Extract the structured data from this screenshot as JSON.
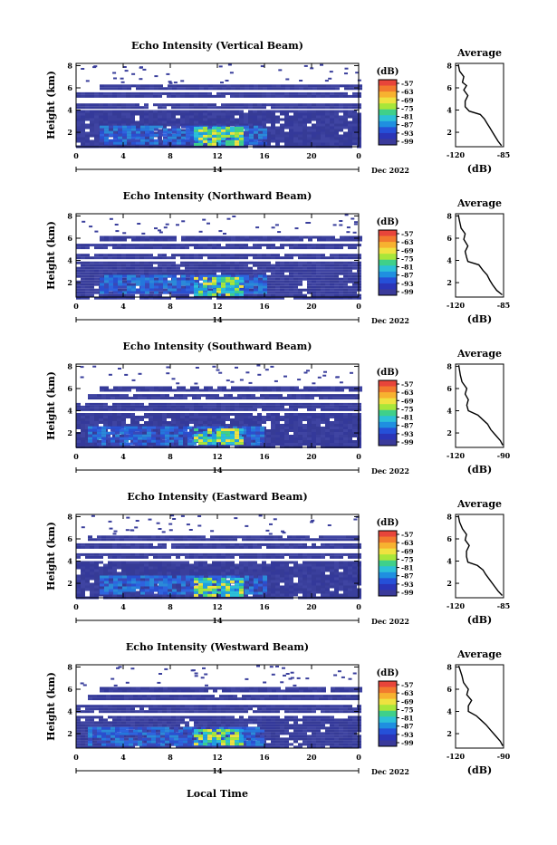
{
  "figure": {
    "xlabel_bottom": "Local Time",
    "date_label": "Dec 2022"
  },
  "chart_data": [
    {
      "type": "heatmap",
      "title": "Echo Intensity (Vertical Beam)",
      "ylabel": "Height (km)",
      "x_ticks": [
        "0",
        "4",
        "8",
        "12",
        "16",
        "20",
        "0"
      ],
      "x_range": [
        0,
        24
      ],
      "day_label": "14",
      "date_label": "Dec 2022",
      "y_ticks": [
        "2",
        "4",
        "6",
        "8"
      ],
      "y_range": [
        0.7,
        8.2
      ],
      "colorbar": {
        "unit": "(dB)",
        "ticks": [
          "-57",
          "-63",
          "-69",
          "-75",
          "-81",
          "-87",
          "-93",
          "-99"
        ],
        "colors": [
          "#e8453a",
          "#f27a2e",
          "#f7b230",
          "#efe240",
          "#a8e63a",
          "#3fd08a",
          "#2cc0d8",
          "#1f8fe0",
          "#2550d8",
          "#2a35b8",
          "#3a3a9a"
        ]
      },
      "avg_profile": {
        "title": "Average",
        "xlabel": "(dB)",
        "x_ticks": [
          "-120",
          "-85"
        ],
        "x_range": [
          -120,
          -85
        ],
        "y_ticks": [
          "2",
          "4",
          "6",
          "8"
        ],
        "y_range": [
          0.7,
          8.2
        ],
        "points": [
          [
            -86.5,
            0.8
          ],
          [
            -89,
            1.2
          ],
          [
            -91,
            1.6
          ],
          [
            -93,
            2.0
          ],
          [
            -95,
            2.4
          ],
          [
            -97,
            2.8
          ],
          [
            -99,
            3.2
          ],
          [
            -102,
            3.6
          ],
          [
            -110,
            3.9
          ],
          [
            -113,
            4.3
          ],
          [
            -113,
            4.8
          ],
          [
            -111,
            5.3
          ],
          [
            -114,
            5.8
          ],
          [
            -112,
            6.2
          ],
          [
            -115,
            6.5
          ],
          [
            -114,
            7.0
          ],
          [
            -117,
            7.5
          ],
          [
            -118,
            8.1
          ]
        ]
      },
      "heat_bands": [
        {
          "y0": 0.7,
          "y1": 4.0,
          "x0": 0,
          "x1": 24,
          "level": "low"
        },
        {
          "y0": 4.3,
          "y1": 4.6,
          "x0": 0,
          "x1": 24,
          "level": "low"
        },
        {
          "y0": 5.2,
          "y1": 5.6,
          "x0": 0,
          "x1": 24,
          "level": "low"
        },
        {
          "y0": 5.9,
          "y1": 6.3,
          "x0": 2,
          "x1": 24,
          "level": "low"
        },
        {
          "y0": 1.0,
          "y1": 2.6,
          "x0": 2,
          "x1": 16,
          "level": "mid"
        },
        {
          "y0": 1.0,
          "y1": 2.5,
          "x0": 10,
          "x1": 14,
          "level": "high"
        }
      ]
    },
    {
      "type": "heatmap",
      "title": "Echo Intensity (Northward Beam)",
      "ylabel": "Height (km)",
      "x_ticks": [
        "0",
        "4",
        "8",
        "12",
        "16",
        "20",
        "0"
      ],
      "x_range": [
        0,
        24
      ],
      "day_label": "14",
      "date_label": "Dec 2022",
      "y_ticks": [
        "2",
        "4",
        "6",
        "8"
      ],
      "y_range": [
        0.7,
        8.2
      ],
      "colorbar": {
        "unit": "(dB)",
        "ticks": [
          "-57",
          "-63",
          "-69",
          "-75",
          "-81",
          "-87",
          "-93",
          "-99"
        ],
        "colors": [
          "#e8453a",
          "#f27a2e",
          "#f7b230",
          "#efe240",
          "#a8e63a",
          "#3fd08a",
          "#2cc0d8",
          "#1f8fe0",
          "#2550d8",
          "#2a35b8",
          "#3a3a9a"
        ]
      },
      "avg_profile": {
        "title": "Average",
        "xlabel": "(dB)",
        "x_ticks": [
          "-120",
          "-85"
        ],
        "x_range": [
          -120,
          -85
        ],
        "y_ticks": [
          "2",
          "4",
          "6",
          "8"
        ],
        "y_range": [
          0.7,
          8.2
        ],
        "points": [
          [
            -86,
            0.9
          ],
          [
            -90,
            1.3
          ],
          [
            -93,
            1.8
          ],
          [
            -95,
            2.2
          ],
          [
            -97,
            2.7
          ],
          [
            -100,
            3.1
          ],
          [
            -103,
            3.6
          ],
          [
            -111,
            3.9
          ],
          [
            -112,
            4.3
          ],
          [
            -113,
            4.8
          ],
          [
            -111,
            5.3
          ],
          [
            -114,
            5.9
          ],
          [
            -113,
            6.4
          ],
          [
            -116,
            6.9
          ],
          [
            -117,
            7.5
          ],
          [
            -118,
            8.1
          ]
        ]
      },
      "heat_bands": [
        {
          "y0": 0.7,
          "y1": 3.9,
          "x0": 0,
          "x1": 24,
          "level": "low"
        },
        {
          "y0": 4.2,
          "y1": 4.6,
          "x0": 0,
          "x1": 24,
          "level": "low"
        },
        {
          "y0": 5.1,
          "y1": 5.5,
          "x0": 0,
          "x1": 24,
          "level": "low"
        },
        {
          "y0": 5.9,
          "y1": 6.2,
          "x0": 2,
          "x1": 24,
          "level": "low"
        },
        {
          "y0": 1.0,
          "y1": 2.7,
          "x0": 2,
          "x1": 16,
          "level": "mid"
        },
        {
          "y0": 1.0,
          "y1": 2.5,
          "x0": 10,
          "x1": 14,
          "level": "high"
        }
      ]
    },
    {
      "type": "heatmap",
      "title": "Echo Intensity (Southward Beam)",
      "ylabel": "Height (km)",
      "x_ticks": [
        "0",
        "4",
        "8",
        "12",
        "16",
        "20",
        "0"
      ],
      "x_range": [
        0,
        24
      ],
      "day_label": "14",
      "date_label": "Dec 2022",
      "y_ticks": [
        "2",
        "4",
        "6",
        "8"
      ],
      "y_range": [
        0.7,
        8.2
      ],
      "colorbar": {
        "unit": "(dB)",
        "ticks": [
          "-57",
          "-63",
          "-69",
          "-75",
          "-81",
          "-87",
          "-93",
          "-99"
        ],
        "colors": [
          "#e8453a",
          "#f27a2e",
          "#f7b230",
          "#efe240",
          "#a8e63a",
          "#3fd08a",
          "#2cc0d8",
          "#1f8fe0",
          "#2550d8",
          "#2a35b8",
          "#3a3a9a"
        ]
      },
      "avg_profile": {
        "title": "Average",
        "xlabel": "(dB)",
        "x_ticks": [
          "-120",
          "-90"
        ],
        "x_range": [
          -120,
          -90
        ],
        "y_ticks": [
          "2",
          "4",
          "6",
          "8"
        ],
        "y_range": [
          0.7,
          8.2
        ],
        "points": [
          [
            -90.5,
            0.9
          ],
          [
            -92,
            1.3
          ],
          [
            -95,
            1.8
          ],
          [
            -98,
            2.3
          ],
          [
            -100,
            2.8
          ],
          [
            -103,
            3.2
          ],
          [
            -106,
            3.6
          ],
          [
            -112,
            4.0
          ],
          [
            -113,
            4.5
          ],
          [
            -112,
            5.0
          ],
          [
            -114,
            5.5
          ],
          [
            -113,
            6.0
          ],
          [
            -116,
            6.6
          ],
          [
            -117,
            7.2
          ],
          [
            -118,
            8.1
          ]
        ]
      },
      "heat_bands": [
        {
          "y0": 0.7,
          "y1": 3.8,
          "x0": 0,
          "x1": 24,
          "level": "low"
        },
        {
          "y0": 4.2,
          "y1": 4.7,
          "x0": 0,
          "x1": 24,
          "level": "low"
        },
        {
          "y0": 5.2,
          "y1": 5.5,
          "x0": 1,
          "x1": 24,
          "level": "low"
        },
        {
          "y0": 5.9,
          "y1": 6.2,
          "x0": 2,
          "x1": 24,
          "level": "low"
        },
        {
          "y0": 1.0,
          "y1": 2.6,
          "x0": 1,
          "x1": 16,
          "level": "mid"
        },
        {
          "y0": 1.0,
          "y1": 2.4,
          "x0": 10,
          "x1": 14,
          "level": "high"
        }
      ]
    },
    {
      "type": "heatmap",
      "title": "Echo Intensity (Eastward Beam)",
      "ylabel": "Height (km)",
      "x_ticks": [
        "0",
        "4",
        "8",
        "12",
        "16",
        "20",
        "0"
      ],
      "x_range": [
        0,
        24
      ],
      "day_label": "14",
      "date_label": "Dec 2022",
      "y_ticks": [
        "2",
        "4",
        "6",
        "8"
      ],
      "y_range": [
        0.7,
        8.2
      ],
      "colorbar": {
        "unit": "(dB)",
        "ticks": [
          "-57",
          "-63",
          "-69",
          "-75",
          "-81",
          "-87",
          "-93",
          "-99"
        ],
        "colors": [
          "#e8453a",
          "#f27a2e",
          "#f7b230",
          "#efe240",
          "#a8e63a",
          "#3fd08a",
          "#2cc0d8",
          "#1f8fe0",
          "#2550d8",
          "#2a35b8",
          "#3a3a9a"
        ]
      },
      "avg_profile": {
        "title": "Average",
        "xlabel": "(dB)",
        "x_ticks": [
          "-120",
          "-85"
        ],
        "x_range": [
          -120,
          -85
        ],
        "y_ticks": [
          "2",
          "4",
          "6",
          "8"
        ],
        "y_range": [
          0.7,
          8.2
        ],
        "points": [
          [
            -86,
            0.9
          ],
          [
            -89,
            1.3
          ],
          [
            -92,
            1.8
          ],
          [
            -95,
            2.3
          ],
          [
            -98,
            2.8
          ],
          [
            -100,
            3.2
          ],
          [
            -104,
            3.6
          ],
          [
            -111,
            3.9
          ],
          [
            -112,
            4.4
          ],
          [
            -112,
            4.9
          ],
          [
            -110,
            5.4
          ],
          [
            -113,
            5.9
          ],
          [
            -112,
            6.4
          ],
          [
            -115,
            6.9
          ],
          [
            -117,
            7.5
          ],
          [
            -118,
            8.1
          ]
        ]
      },
      "heat_bands": [
        {
          "y0": 0.7,
          "y1": 4.0,
          "x0": 0,
          "x1": 24,
          "level": "low"
        },
        {
          "y0": 4.3,
          "y1": 4.7,
          "x0": 0,
          "x1": 24,
          "level": "low"
        },
        {
          "y0": 5.2,
          "y1": 5.6,
          "x0": 0,
          "x1": 24,
          "level": "low"
        },
        {
          "y0": 5.9,
          "y1": 6.3,
          "x0": 1,
          "x1": 24,
          "level": "low"
        },
        {
          "y0": 1.0,
          "y1": 2.7,
          "x0": 2,
          "x1": 16,
          "level": "mid"
        },
        {
          "y0": 1.0,
          "y1": 2.5,
          "x0": 10,
          "x1": 14,
          "level": "high"
        }
      ]
    },
    {
      "type": "heatmap",
      "title": "Echo Intensity (Westward Beam)",
      "ylabel": "Height (km)",
      "x_ticks": [
        "0",
        "4",
        "8",
        "12",
        "16",
        "20",
        "0"
      ],
      "x_range": [
        0,
        24
      ],
      "day_label": "14",
      "date_label": "Dec 2022",
      "y_ticks": [
        "2",
        "4",
        "6",
        "8"
      ],
      "y_range": [
        0.7,
        8.2
      ],
      "colorbar": {
        "unit": "(dB)",
        "ticks": [
          "-57",
          "-63",
          "-69",
          "-75",
          "-81",
          "-87",
          "-93",
          "-99"
        ],
        "colors": [
          "#e8453a",
          "#f27a2e",
          "#f7b230",
          "#efe240",
          "#a8e63a",
          "#3fd08a",
          "#2cc0d8",
          "#1f8fe0",
          "#2550d8",
          "#2a35b8",
          "#3a3a9a"
        ]
      },
      "avg_profile": {
        "title": "Average",
        "xlabel": "(dB)",
        "x_ticks": [
          "-120",
          "-90"
        ],
        "x_range": [
          -120,
          -90
        ],
        "y_ticks": [
          "2",
          "4",
          "6",
          "8"
        ],
        "y_range": [
          0.7,
          8.2
        ],
        "points": [
          [
            -90.5,
            0.9
          ],
          [
            -92,
            1.3
          ],
          [
            -95,
            1.8
          ],
          [
            -98,
            2.3
          ],
          [
            -101,
            2.8
          ],
          [
            -104,
            3.2
          ],
          [
            -107,
            3.6
          ],
          [
            -112,
            4.0
          ],
          [
            -112,
            4.5
          ],
          [
            -110,
            5.0
          ],
          [
            -113,
            5.5
          ],
          [
            -112,
            6.0
          ],
          [
            -115,
            6.6
          ],
          [
            -116,
            7.2
          ],
          [
            -118,
            8.1
          ]
        ]
      },
      "heat_bands": [
        {
          "y0": 0.7,
          "y1": 3.6,
          "x0": 0,
          "x1": 24,
          "level": "low"
        },
        {
          "y0": 4.1,
          "y1": 4.6,
          "x0": 0,
          "x1": 24,
          "level": "low"
        },
        {
          "y0": 5.2,
          "y1": 5.5,
          "x0": 1,
          "x1": 24,
          "level": "low"
        },
        {
          "y0": 5.9,
          "y1": 6.2,
          "x0": 2,
          "x1": 24,
          "level": "low"
        },
        {
          "y0": 1.0,
          "y1": 2.6,
          "x0": 1,
          "x1": 16,
          "level": "mid"
        },
        {
          "y0": 1.0,
          "y1": 2.4,
          "x0": 10,
          "x1": 14,
          "level": "high"
        }
      ]
    }
  ]
}
